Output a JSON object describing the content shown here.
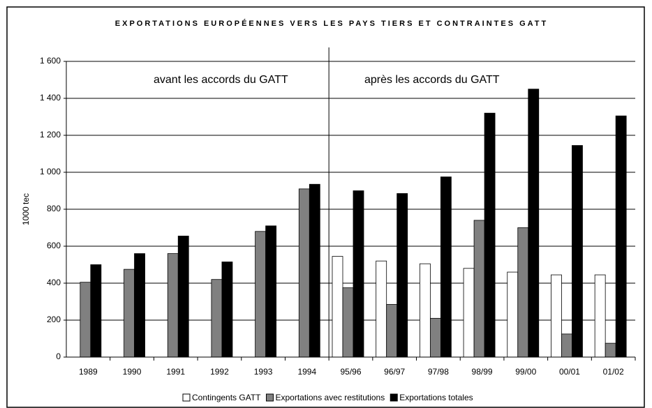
{
  "chart_data": {
    "type": "bar",
    "title": "EXPORTATIONS EUROPÉENNES VERS LES PAYS TIERS ET CONTRAINTES GATT",
    "y_label": "1000 tec",
    "annotations": [
      "avant les accords du GATT",
      "après les accords du GATT"
    ],
    "categories": [
      "1989",
      "1990",
      "1991",
      "1992",
      "1993",
      "1994",
      "95/96",
      "96/97",
      "97/98",
      "98/99",
      "99/00",
      "00/01",
      "01/02"
    ],
    "series": [
      {
        "name": "Contingents GATT",
        "color": "#ffffff",
        "values": [
          null,
          null,
          null,
          null,
          null,
          null,
          545,
          520,
          505,
          480,
          460,
          445,
          445
        ]
      },
      {
        "name": "Exportations avec restitutions",
        "color": "#808080",
        "values": [
          405,
          475,
          560,
          420,
          680,
          910,
          375,
          285,
          210,
          740,
          700,
          125,
          75
        ]
      },
      {
        "name": "Exportations totales",
        "color": "#000000",
        "values": [
          500,
          560,
          655,
          515,
          710,
          935,
          900,
          885,
          975,
          1320,
          1450,
          1145,
          1305
        ]
      }
    ],
    "ylim": [
      0,
      1600
    ],
    "yticks": [
      0,
      200,
      400,
      600,
      800,
      {
        "value": 1000,
        "label": "1 000"
      },
      {
        "value": 1200,
        "label": "1 200"
      },
      {
        "value": 1400,
        "label": "1 400"
      },
      {
        "value": 1600,
        "label": "1 600"
      }
    ],
    "grid": true
  }
}
